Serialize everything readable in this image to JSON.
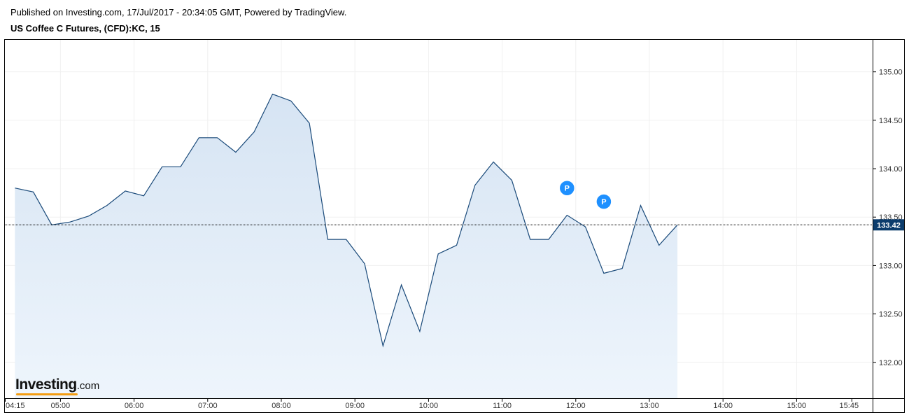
{
  "header": {
    "published": "Published on Investing.com, 17/Jul/2017 - 20:34:05 GMT, Powered by TradingView.",
    "symbol": "US Coffee C Futures, (CFD):KC, 15"
  },
  "logo": {
    "brand": "Investing",
    "suffix": ".com"
  },
  "colors": {
    "line": "#1a4a7a",
    "fill_top": "#d6e4f3",
    "fill_bottom": "#eef5fc",
    "grid": "#f0f0f0",
    "marker": "#1e90ff",
    "price_tag": "#0c3c6c"
  },
  "chart_data": {
    "type": "area",
    "grid": true,
    "x_tick_labels": [
      "04:15",
      "05:00",
      "06:00",
      "07:00",
      "08:00",
      "09:00",
      "10:00",
      "11:00",
      "12:00",
      "13:00",
      "14:00",
      "15:00",
      "15:45"
    ],
    "y_tick_labels": [
      "132.00",
      "132.50",
      "133.00",
      "133.50",
      "134.00",
      "134.50",
      "135.00"
    ],
    "ylim": [
      131.63,
      135.33
    ],
    "last_price": 133.42,
    "last_price_label": "133.42",
    "x": [
      "04:15",
      "04:30",
      "04:45",
      "05:00",
      "05:15",
      "05:30",
      "05:45",
      "06:00",
      "06:15",
      "06:30",
      "06:45",
      "07:00",
      "07:15",
      "07:30",
      "07:45",
      "08:00",
      "08:15",
      "08:30",
      "08:45",
      "09:00",
      "09:15",
      "09:30",
      "09:45",
      "10:00",
      "10:15",
      "10:30",
      "10:45",
      "11:00",
      "11:15",
      "11:30",
      "11:45",
      "12:00",
      "12:15",
      "12:30",
      "12:45",
      "13:00",
      "13:15"
    ],
    "values": [
      133.8,
      133.76,
      133.42,
      133.45,
      133.51,
      133.62,
      133.77,
      133.72,
      134.02,
      134.02,
      134.32,
      134.32,
      134.17,
      134.38,
      134.77,
      134.7,
      134.47,
      133.27,
      133.27,
      133.02,
      132.17,
      132.8,
      132.32,
      133.12,
      133.21,
      133.83,
      134.07,
      133.88,
      133.27,
      133.27,
      133.52,
      133.4,
      132.92,
      132.97,
      133.62,
      133.21,
      133.42
    ],
    "markers": [
      {
        "x": "11:45",
        "label": "P",
        "y": 133.8
      },
      {
        "x": "12:15",
        "label": "P",
        "y": 133.66
      }
    ]
  }
}
